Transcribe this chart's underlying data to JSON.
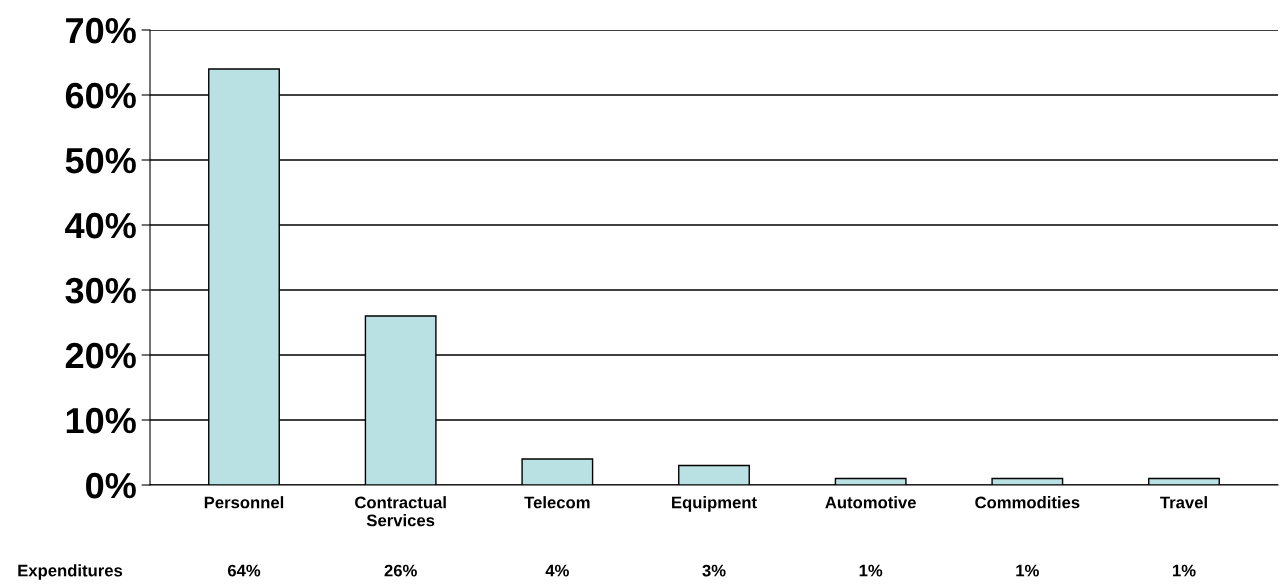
{
  "chart_data": {
    "type": "bar",
    "categories": [
      "Personnel",
      "Contractual\nServices",
      "Telecom",
      "Equipment",
      "Automotive",
      "Commodities",
      "Travel"
    ],
    "series": [
      {
        "name": "Expenditures",
        "color": "#b9e0e3",
        "values": [
          64,
          26,
          4,
          3,
          1,
          1,
          1
        ],
        "value_labels": [
          "64%",
          "26%",
          "4%",
          "3%",
          "1%",
          "1%",
          "1%"
        ]
      }
    ],
    "ylim": [
      0,
      70
    ],
    "yticks": [
      {
        "value": 0,
        "label": "0%"
      },
      {
        "value": 10,
        "label": "10%"
      },
      {
        "value": 20,
        "label": "20%"
      },
      {
        "value": 30,
        "label": "30%"
      },
      {
        "value": 40,
        "label": "40%"
      },
      {
        "value": 50,
        "label": "50%"
      },
      {
        "value": 60,
        "label": "60%"
      },
      {
        "value": 70,
        "label": "70%"
      }
    ],
    "grid": "y",
    "legend": false
  }
}
